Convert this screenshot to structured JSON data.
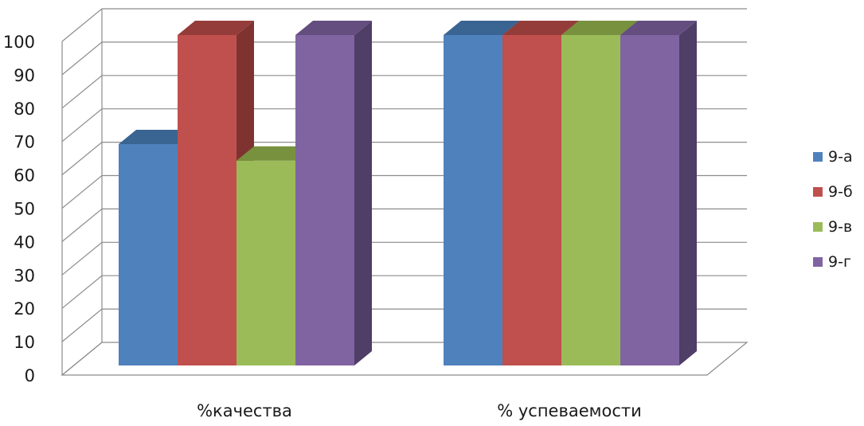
{
  "chart_data": {
    "type": "bar",
    "categories": [
      "%качества",
      "% успеваемости"
    ],
    "series": [
      {
        "name": "9-а",
        "values": [
          67,
          100
        ],
        "color": "#4F81BD",
        "top": "#3A6491",
        "side": "#355E8C"
      },
      {
        "name": "9-б",
        "values": [
          100,
          100
        ],
        "color": "#C0504D",
        "top": "#943C3A",
        "side": "#7F3331"
      },
      {
        "name": "9-в",
        "values": [
          62,
          100
        ],
        "color": "#9BBB59",
        "top": "#78913F",
        "side": "#6A8138"
      },
      {
        "name": "9-г",
        "values": [
          100,
          100
        ],
        "color": "#8064A2",
        "top": "#644E80",
        "side": "#4F3E66"
      }
    ],
    "ylim": [
      0,
      100
    ],
    "yticks": [
      "0",
      "10",
      "20",
      "30",
      "40",
      "50",
      "60",
      "70",
      "80",
      "90",
      "100"
    ],
    "grid": true,
    "legend_position": "right",
    "title": "",
    "xlabel": "",
    "ylabel": ""
  }
}
